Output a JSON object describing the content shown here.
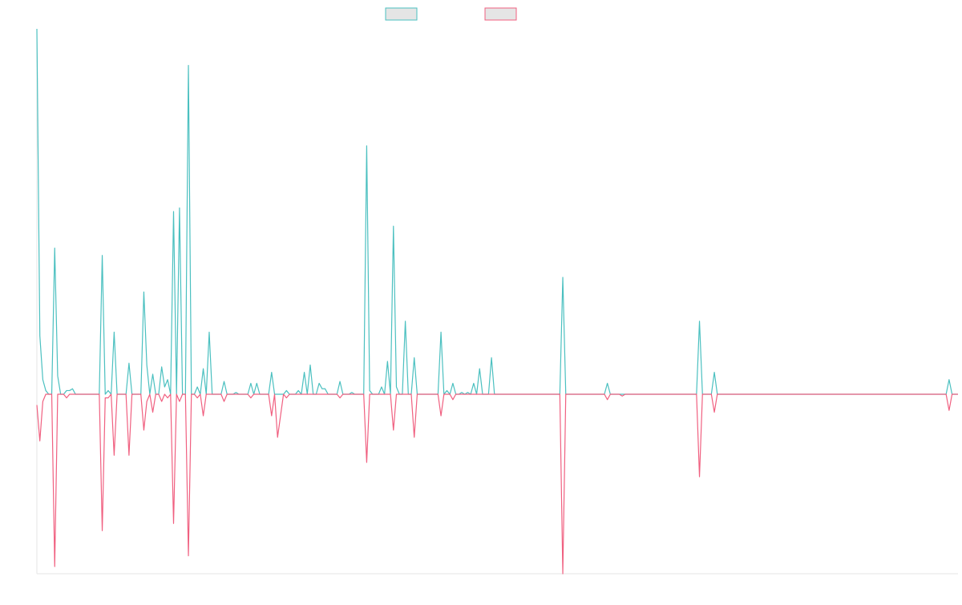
{
  "chart_data": {
    "type": "line",
    "title": "",
    "xlabel": "",
    "ylabel": "",
    "grid": false,
    "legend_position": "top-center",
    "x_range": [
      0,
      255
    ],
    "y_range": [
      -0.5,
      1.0
    ],
    "series": [
      {
        "color": "#4bc0c0",
        "fill": "#e5e5e5",
        "direction": "up",
        "peaks": [
          [
            0,
            1.0
          ],
          [
            1,
            0.16
          ],
          [
            2,
            0.04
          ],
          [
            3,
            0.01
          ],
          [
            4,
            0.0
          ],
          [
            5,
            0.0
          ],
          [
            6,
            0.4
          ],
          [
            7,
            0.05
          ],
          [
            8,
            0.0
          ],
          [
            9,
            0.0
          ],
          [
            10,
            0.01
          ],
          [
            11,
            0.01
          ],
          [
            12,
            0.015
          ],
          [
            13,
            0.0
          ],
          [
            21,
            0.0
          ],
          [
            22,
            0.38
          ],
          [
            23,
            0.0
          ],
          [
            24,
            0.01
          ],
          [
            25,
            0.0
          ],
          [
            26,
            0.17
          ],
          [
            27,
            0.0
          ],
          [
            30,
            0.0
          ],
          [
            31,
            0.085
          ],
          [
            32,
            0.0
          ],
          [
            33,
            0.0
          ],
          [
            34,
            0.0
          ],
          [
            35,
            0.0
          ],
          [
            36,
            0.28
          ],
          [
            37,
            0.08
          ],
          [
            38,
            0.0
          ],
          [
            39,
            0.055
          ],
          [
            40,
            0.0
          ],
          [
            41,
            0.0
          ],
          [
            42,
            0.075
          ],
          [
            43,
            0.02
          ],
          [
            44,
            0.04
          ],
          [
            45,
            0.0
          ],
          [
            46,
            0.5
          ],
          [
            47,
            0.0
          ],
          [
            48,
            0.51
          ],
          [
            49,
            0.0
          ],
          [
            50,
            0.0
          ],
          [
            51,
            0.9
          ],
          [
            52,
            0.0
          ],
          [
            53,
            0.0
          ],
          [
            54,
            0.02
          ],
          [
            55,
            0.0
          ],
          [
            56,
            0.07
          ],
          [
            57,
            0.0
          ],
          [
            58,
            0.17
          ],
          [
            59,
            0.0
          ],
          [
            60,
            0.0
          ],
          [
            61,
            0.0
          ],
          [
            62,
            0.0
          ],
          [
            63,
            0.035
          ],
          [
            64,
            0.0
          ],
          [
            65,
            0.0
          ],
          [
            66,
            0.0
          ],
          [
            67,
            0.005
          ],
          [
            68,
            0.0
          ],
          [
            70,
            0.0
          ],
          [
            71,
            0.0
          ],
          [
            72,
            0.03
          ],
          [
            73,
            0.0
          ],
          [
            74,
            0.03
          ],
          [
            75,
            0.0
          ],
          [
            76,
            0.0
          ],
          [
            77,
            0.0
          ],
          [
            78,
            0.0
          ],
          [
            79,
            0.06
          ],
          [
            80,
            0.0
          ],
          [
            81,
            0.0
          ],
          [
            83,
            0.0
          ],
          [
            84,
            0.01
          ],
          [
            85,
            0.0
          ],
          [
            86,
            0.0
          ],
          [
            87,
            0.0
          ],
          [
            88,
            0.01
          ],
          [
            89,
            0.0
          ],
          [
            90,
            0.06
          ],
          [
            91,
            0.0
          ],
          [
            92,
            0.08
          ],
          [
            93,
            0.0
          ],
          [
            94,
            0.0
          ],
          [
            95,
            0.03
          ],
          [
            96,
            0.015
          ],
          [
            97,
            0.015
          ],
          [
            98,
            0.0
          ],
          [
            99,
            0.0
          ],
          [
            101,
            0.0
          ],
          [
            102,
            0.035
          ],
          [
            103,
            0.0
          ],
          [
            104,
            0.0
          ],
          [
            105,
            0.0
          ],
          [
            106,
            0.005
          ],
          [
            107,
            0.0
          ],
          [
            110,
            0.0
          ],
          [
            111,
            0.68
          ],
          [
            112,
            0.01
          ],
          [
            113,
            0.0
          ],
          [
            114,
            0.0
          ],
          [
            115,
            0.0
          ],
          [
            116,
            0.02
          ],
          [
            117,
            0.0
          ],
          [
            118,
            0.09
          ],
          [
            119,
            0.0
          ],
          [
            120,
            0.46
          ],
          [
            121,
            0.02
          ],
          [
            122,
            0.0
          ],
          [
            123,
            0.0
          ],
          [
            124,
            0.2
          ],
          [
            125,
            0.0
          ],
          [
            126,
            0.0
          ],
          [
            127,
            0.1
          ],
          [
            128,
            0.0
          ],
          [
            129,
            0.0
          ],
          [
            130,
            0.0
          ],
          [
            131,
            0.0
          ],
          [
            132,
            0.0
          ],
          [
            133,
            0.0
          ],
          [
            134,
            0.0
          ],
          [
            135,
            0.0
          ],
          [
            136,
            0.17
          ],
          [
            137,
            0.0
          ],
          [
            138,
            0.01
          ],
          [
            139,
            0.0
          ],
          [
            140,
            0.03
          ],
          [
            141,
            0.0
          ],
          [
            142,
            0.0
          ],
          [
            143,
            0.005
          ],
          [
            144,
            0.0
          ],
          [
            145,
            0.005
          ],
          [
            146,
            0.0
          ],
          [
            147,
            0.03
          ],
          [
            148,
            0.0
          ],
          [
            149,
            0.07
          ],
          [
            150,
            0.0
          ],
          [
            151,
            0.0
          ],
          [
            152,
            0.0
          ],
          [
            153,
            0.1
          ],
          [
            154,
            0.0
          ],
          [
            155,
            0.0
          ],
          [
            156,
            0.0
          ],
          [
            157,
            0.0
          ],
          [
            158,
            0.0
          ],
          [
            176,
            0.0
          ],
          [
            177,
            0.32
          ],
          [
            178,
            0.0
          ],
          [
            191,
            0.0
          ],
          [
            192,
            0.03
          ],
          [
            193,
            0.0
          ],
          [
            196,
            0.0
          ],
          [
            197,
            0.0
          ],
          [
            198,
            0.0
          ],
          [
            222,
            0.0
          ],
          [
            223,
            0.2
          ],
          [
            224,
            0.0
          ],
          [
            227,
            0.0
          ],
          [
            228,
            0.06
          ],
          [
            229,
            0.0
          ],
          [
            244,
            0.0
          ],
          [
            245,
            0.0
          ],
          [
            246,
            0.0
          ],
          [
            306,
            0.0
          ],
          [
            307,
            0.04
          ],
          [
            308,
            0.0
          ],
          [
            309,
            0.0
          ],
          [
            310,
            0.0
          ]
        ]
      },
      {
        "color": "#f06080",
        "fill": "#e5e5e5",
        "direction": "down",
        "peaks": [
          [
            0,
            0.03
          ],
          [
            1,
            0.13
          ],
          [
            2,
            0.02
          ],
          [
            3,
            0.0
          ],
          [
            4,
            0.0
          ],
          [
            5,
            0.0
          ],
          [
            6,
            0.48
          ],
          [
            7,
            0.0
          ],
          [
            8,
            0.0
          ],
          [
            9,
            0.0
          ],
          [
            10,
            0.01
          ],
          [
            11,
            0.0
          ],
          [
            12,
            0.0
          ],
          [
            13,
            0.0
          ],
          [
            21,
            0.0
          ],
          [
            22,
            0.38
          ],
          [
            23,
            0.01
          ],
          [
            24,
            0.01
          ],
          [
            25,
            0.0
          ],
          [
            26,
            0.17
          ],
          [
            27,
            0.0
          ],
          [
            30,
            0.0
          ],
          [
            31,
            0.17
          ],
          [
            32,
            0.0
          ],
          [
            33,
            0.0
          ],
          [
            34,
            0.0
          ],
          [
            35,
            0.0
          ],
          [
            36,
            0.1
          ],
          [
            37,
            0.02
          ],
          [
            38,
            0.0
          ],
          [
            39,
            0.05
          ],
          [
            40,
            0.0
          ],
          [
            41,
            0.0
          ],
          [
            42,
            0.02
          ],
          [
            43,
            0.0
          ],
          [
            44,
            0.01
          ],
          [
            45,
            0.0
          ],
          [
            46,
            0.36
          ],
          [
            47,
            0.0
          ],
          [
            48,
            0.02
          ],
          [
            49,
            0.0
          ],
          [
            50,
            0.0
          ],
          [
            51,
            0.45
          ],
          [
            52,
            0.0
          ],
          [
            53,
            0.0
          ],
          [
            54,
            0.01
          ],
          [
            55,
            0.0
          ],
          [
            56,
            0.06
          ],
          [
            57,
            0.0
          ],
          [
            58,
            0.0
          ],
          [
            59,
            0.0
          ],
          [
            60,
            0.0
          ],
          [
            61,
            0.0
          ],
          [
            62,
            0.0
          ],
          [
            63,
            0.02
          ],
          [
            64,
            0.0
          ],
          [
            65,
            0.0
          ],
          [
            66,
            0.0
          ],
          [
            67,
            0.0
          ],
          [
            68,
            0.0
          ],
          [
            70,
            0.0
          ],
          [
            71,
            0.0
          ],
          [
            72,
            0.01
          ],
          [
            73,
            0.0
          ],
          [
            74,
            0.0
          ],
          [
            75,
            0.0
          ],
          [
            76,
            0.0
          ],
          [
            77,
            0.0
          ],
          [
            78,
            0.0
          ],
          [
            79,
            0.06
          ],
          [
            80,
            0.0
          ],
          [
            81,
            0.12
          ],
          [
            83,
            0.0
          ],
          [
            84,
            0.01
          ],
          [
            85,
            0.0
          ],
          [
            86,
            0.0
          ],
          [
            87,
            0.0
          ],
          [
            88,
            0.0
          ],
          [
            89,
            0.0
          ],
          [
            90,
            0.0
          ],
          [
            91,
            0.0
          ],
          [
            92,
            0.0
          ],
          [
            93,
            0.0
          ],
          [
            94,
            0.0
          ],
          [
            95,
            0.0
          ],
          [
            96,
            0.0
          ],
          [
            97,
            0.0
          ],
          [
            98,
            0.0
          ],
          [
            99,
            0.0
          ],
          [
            101,
            0.0
          ],
          [
            102,
            0.01
          ],
          [
            103,
            0.0
          ],
          [
            104,
            0.0
          ],
          [
            105,
            0.0
          ],
          [
            106,
            0.0
          ],
          [
            107,
            0.0
          ],
          [
            110,
            0.0
          ],
          [
            111,
            0.19
          ],
          [
            112,
            0.0
          ],
          [
            113,
            0.0
          ],
          [
            114,
            0.0
          ],
          [
            115,
            0.0
          ],
          [
            116,
            0.0
          ],
          [
            117,
            0.0
          ],
          [
            118,
            0.0
          ],
          [
            119,
            0.0
          ],
          [
            120,
            0.1
          ],
          [
            121,
            0.0
          ],
          [
            122,
            0.0
          ],
          [
            123,
            0.0
          ],
          [
            124,
            0.0
          ],
          [
            125,
            0.0
          ],
          [
            126,
            0.0
          ],
          [
            127,
            0.12
          ],
          [
            128,
            0.0
          ],
          [
            129,
            0.0
          ],
          [
            130,
            0.0
          ],
          [
            131,
            0.0
          ],
          [
            132,
            0.0
          ],
          [
            133,
            0.0
          ],
          [
            134,
            0.0
          ],
          [
            135,
            0.0
          ],
          [
            136,
            0.06
          ],
          [
            137,
            0.0
          ],
          [
            138,
            0.0
          ],
          [
            139,
            0.0
          ],
          [
            140,
            0.015
          ],
          [
            141,
            0.0
          ],
          [
            142,
            0.0
          ],
          [
            143,
            0.0
          ],
          [
            144,
            0.0
          ],
          [
            145,
            0.0
          ],
          [
            146,
            0.0
          ],
          [
            147,
            0.0
          ],
          [
            148,
            0.0
          ],
          [
            149,
            0.0
          ],
          [
            150,
            0.0
          ],
          [
            151,
            0.0
          ],
          [
            152,
            0.0
          ],
          [
            153,
            0.0
          ],
          [
            154,
            0.0
          ],
          [
            155,
            0.0
          ],
          [
            156,
            0.0
          ],
          [
            157,
            0.0
          ],
          [
            158,
            0.0
          ],
          [
            176,
            0.0
          ],
          [
            177,
            0.5
          ],
          [
            178,
            0.0
          ],
          [
            191,
            0.0
          ],
          [
            192,
            0.015
          ],
          [
            193,
            0.0
          ],
          [
            196,
            0.0
          ],
          [
            197,
            0.005
          ],
          [
            198,
            0.0
          ],
          [
            222,
            0.0
          ],
          [
            223,
            0.23
          ],
          [
            224,
            0.0
          ],
          [
            227,
            0.0
          ],
          [
            228,
            0.05
          ],
          [
            229,
            0.0
          ],
          [
            244,
            0.0
          ],
          [
            245,
            0.0
          ],
          [
            246,
            0.0
          ],
          [
            306,
            0.0
          ],
          [
            307,
            0.045
          ],
          [
            308,
            0.0
          ],
          [
            309,
            0.0
          ],
          [
            310,
            0.0
          ]
        ]
      }
    ]
  }
}
